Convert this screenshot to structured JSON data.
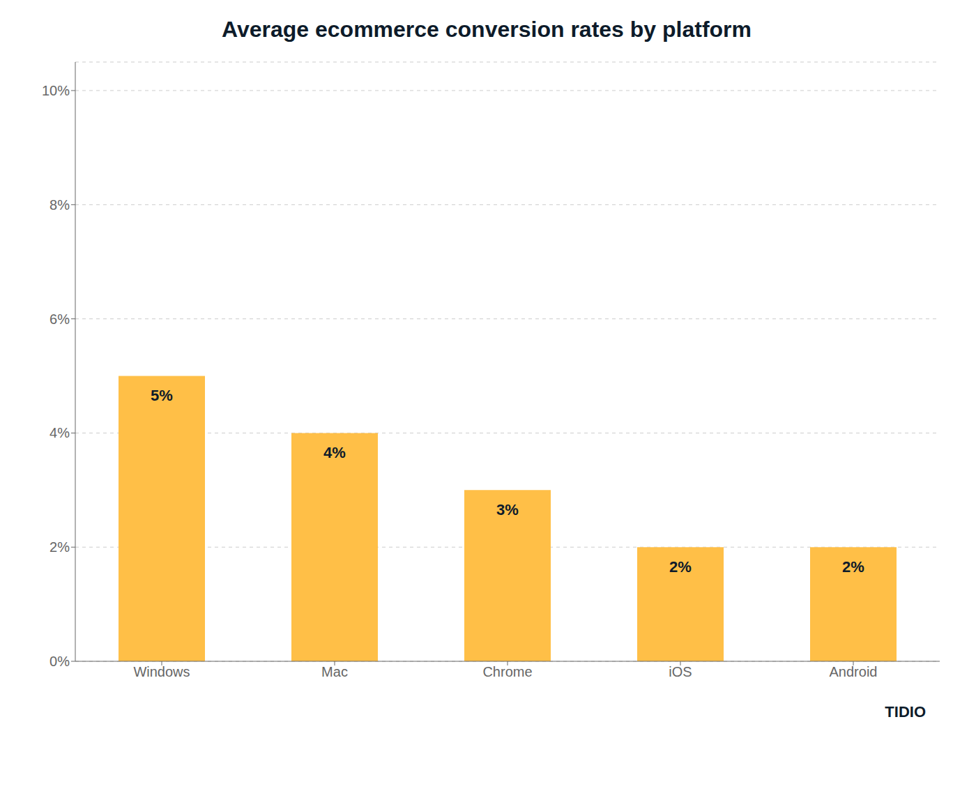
{
  "chart_data": {
    "type": "bar",
    "title": "Average ecommerce conversion rates by platform",
    "categories": [
      "Windows",
      "Mac",
      "Chrome",
      "iOS",
      "Android"
    ],
    "values": [
      5,
      4,
      3,
      2,
      2
    ],
    "value_labels": [
      "5%",
      "4%",
      "3%",
      "2%",
      "2%"
    ],
    "data_labels": true,
    "color": "#FFBF47",
    "ylim": [
      0,
      10.5
    ],
    "yticks": [
      {
        "value": 0,
        "label": "0%"
      },
      {
        "value": 2,
        "label": "2%"
      },
      {
        "value": 4,
        "label": "4%"
      },
      {
        "value": 6,
        "label": "6%"
      },
      {
        "value": 8,
        "label": "8%"
      },
      {
        "value": 10,
        "label": "10%"
      }
    ],
    "grid": true,
    "annotations": [
      "TIDIO"
    ]
  }
}
